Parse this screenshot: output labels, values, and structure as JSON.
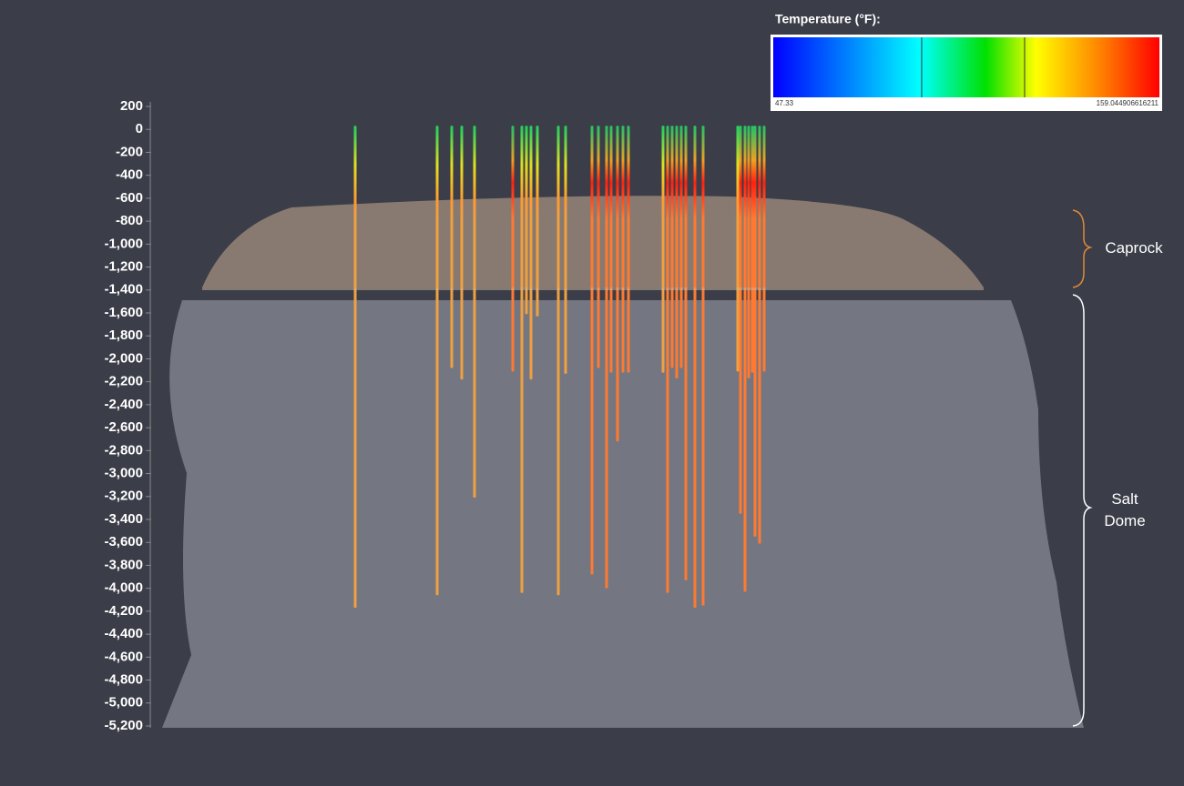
{
  "chart_data": {
    "type": "wells",
    "title": "Temperature (°F):",
    "colorbar_range": [
      47.33,
      159.044906616211
    ],
    "annotations": [
      "Caprock",
      "Salt Dome"
    ],
    "ylim": [
      -5200,
      200
    ],
    "yticks": [
      200,
      0,
      -200,
      -400,
      -600,
      -800,
      {
        "value": -1000,
        "label": "-1,000"
      },
      {
        "value": -1200,
        "label": "-1,200"
      },
      {
        "value": -1400,
        "label": "-1,400"
      },
      {
        "value": -1600,
        "label": "-1,600"
      },
      {
        "value": -1800,
        "label": "-1,800"
      },
      {
        "value": -2000,
        "label": "-2,000"
      },
      {
        "value": -2200,
        "label": "-2,200"
      },
      {
        "value": -2400,
        "label": "-2,400"
      },
      {
        "value": -2600,
        "label": "-2,600"
      },
      {
        "value": -2800,
        "label": "-2,800"
      },
      {
        "value": -3000,
        "label": "-3,000"
      },
      {
        "value": -3200,
        "label": "-3,200"
      },
      {
        "value": -3400,
        "label": "-3,400"
      },
      {
        "value": -3600,
        "label": "-3,600"
      },
      {
        "value": -3800,
        "label": "-3,800"
      },
      {
        "value": -4000,
        "label": "-4,000"
      },
      {
        "value": -4200,
        "label": "-4,200"
      },
      {
        "value": -4400,
        "label": "-4,400"
      },
      {
        "value": -4600,
        "label": "-4,600"
      },
      {
        "value": -4800,
        "label": "-4,800"
      },
      {
        "value": -5000,
        "label": "-5,000"
      },
      {
        "value": -5200,
        "label": "-5,200"
      }
    ],
    "values": [
      -4170,
      -4060,
      -2080,
      -2180,
      -3210,
      -2110,
      -4040,
      -1610,
      -2180,
      -1630,
      -4060,
      -2130,
      -3880,
      -2080,
      -4000,
      -2120,
      -2720,
      -2120,
      -2120,
      -2120,
      -4040,
      -2080,
      -2170,
      -2080,
      -3930,
      -4170,
      -4150,
      -2110,
      -3350,
      -4030,
      -2170,
      -2120,
      -3550,
      -3610,
      -2110
    ]
  }
}
